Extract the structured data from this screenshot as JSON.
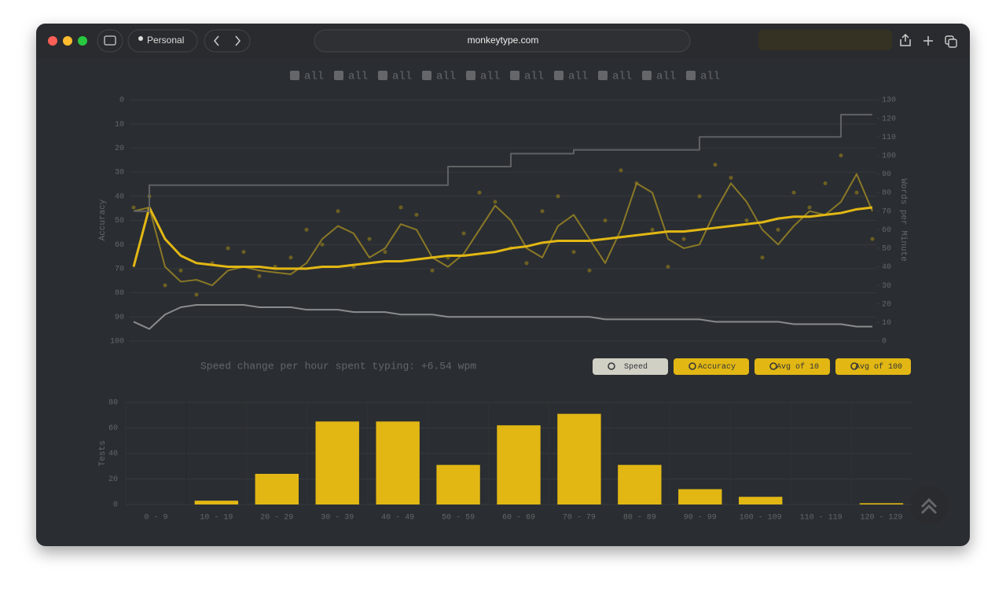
{
  "browser": {
    "profile": "Personal",
    "url": "monkeytype.com"
  },
  "filters": [
    "all",
    "all",
    "all",
    "all",
    "all",
    "all",
    "all",
    "all",
    "all",
    "all"
  ],
  "speed_change": "Speed change per hour spent typing: +6.54 wpm",
  "chart_data": [
    {
      "type": "line",
      "ylabel": "Accuracy",
      "y2label": "Words per Minute",
      "ylim": [
        100,
        0
      ],
      "yticks": [
        0,
        10,
        20,
        30,
        40,
        50,
        60,
        70,
        80,
        90,
        100
      ],
      "y2lim": [
        0,
        130
      ],
      "y2ticks": [
        0,
        10,
        20,
        30,
        40,
        50,
        60,
        70,
        80,
        90,
        100,
        110,
        120,
        130
      ],
      "grid": true,
      "series": [
        {
          "name": "Speed",
          "type": "scatter",
          "axis": "y2",
          "color": "#7d6b1e",
          "values": [
            72,
            78,
            30,
            38,
            25,
            42,
            50,
            48,
            35,
            40,
            45,
            60,
            52,
            70,
            40,
            55,
            48,
            72,
            68,
            38,
            45,
            58,
            80,
            75,
            50,
            42,
            70,
            78,
            48,
            38,
            65,
            92,
            85,
            60,
            40,
            55,
            78,
            95,
            88,
            65,
            45,
            60,
            80,
            72,
            85,
            100,
            80,
            55
          ]
        },
        {
          "name": "Accuracy",
          "type": "line",
          "color": "#8a8b8d",
          "values": [
            92,
            95,
            89,
            86,
            85,
            85,
            85,
            85,
            86,
            86,
            86,
            87,
            87,
            87,
            88,
            88,
            88,
            89,
            89,
            89,
            90,
            90,
            90,
            90,
            90,
            90,
            90,
            90,
            90,
            90,
            91,
            91,
            91,
            91,
            91,
            91,
            91,
            92,
            92,
            92,
            92,
            92,
            93,
            93,
            93,
            93,
            94,
            94
          ]
        },
        {
          "name": "Avg of 10",
          "type": "line",
          "axis": "y2",
          "color": "#8a7826",
          "values": [
            70,
            72,
            40,
            32,
            33,
            30,
            38,
            40,
            38,
            37,
            36,
            42,
            55,
            62,
            58,
            45,
            50,
            63,
            60,
            45,
            40,
            47,
            60,
            73,
            65,
            50,
            45,
            62,
            68,
            55,
            42,
            60,
            85,
            80,
            55,
            50,
            52,
            70,
            85,
            75,
            60,
            52,
            62,
            70,
            68,
            75,
            90,
            70
          ]
        },
        {
          "name": "Avg of 100",
          "type": "line",
          "axis": "y2",
          "color": "#e2b714",
          "values": [
            40,
            72,
            55,
            46,
            42,
            41,
            40,
            40,
            40,
            39,
            39,
            39,
            40,
            40,
            41,
            42,
            43,
            43,
            44,
            45,
            46,
            46,
            47,
            48,
            50,
            51,
            53,
            54,
            54,
            54,
            55,
            56,
            57,
            58,
            59,
            59,
            60,
            61,
            62,
            63,
            64,
            66,
            67,
            67,
            68,
            69,
            71,
            72
          ]
        },
        {
          "type": "step",
          "axis": "y2",
          "color": "#5f6164",
          "values": [
            70,
            84,
            84,
            84,
            84,
            84,
            84,
            84,
            84,
            84,
            84,
            84,
            84,
            84,
            84,
            84,
            84,
            84,
            84,
            84,
            94,
            94,
            94,
            94,
            101,
            101,
            101,
            101,
            103,
            103,
            103,
            103,
            103,
            103,
            103,
            103,
            110,
            110,
            110,
            110,
            110,
            110,
            110,
            110,
            110,
            122,
            122,
            122
          ]
        }
      ]
    },
    {
      "type": "bar",
      "ylabel": "Tests",
      "color": "#e2b714",
      "grid": true,
      "categories": [
        "0 - 9",
        "10 - 19",
        "20 - 29",
        "30 - 39",
        "40 - 49",
        "50 - 59",
        "60 - 69",
        "70 - 79",
        "80 - 89",
        "90 - 99",
        "100 - 109",
        "110 - 119",
        "120 - 129"
      ],
      "values": [
        0,
        3,
        24,
        65,
        65,
        31,
        62,
        71,
        31,
        12,
        6,
        0,
        1
      ],
      "ylim": [
        0,
        80
      ],
      "yticks": [
        0,
        20,
        40,
        60,
        80
      ]
    }
  ]
}
